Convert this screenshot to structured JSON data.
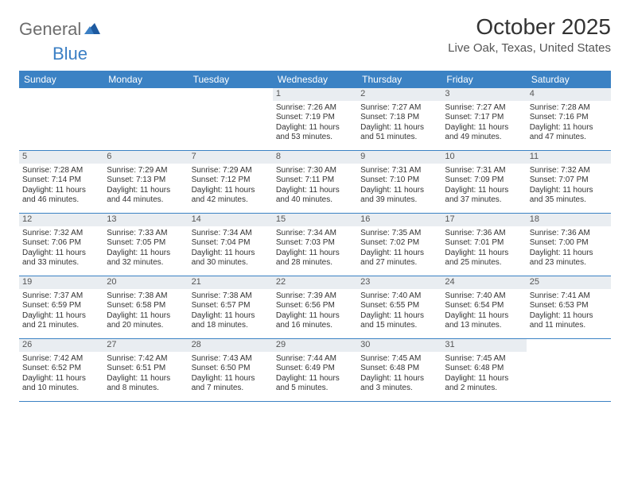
{
  "logo": {
    "text1": "General",
    "text2": "Blue"
  },
  "title": "October 2025",
  "location": "Live Oak, Texas, United States",
  "colors": {
    "header_bg": "#3b82c4",
    "daynum_bg": "#e9edf1",
    "border": "#3b82c4",
    "text": "#333333",
    "logo_gray": "#6d6d6d",
    "logo_blue": "#3b7fc4"
  },
  "day_labels": [
    "Sunday",
    "Monday",
    "Tuesday",
    "Wednesday",
    "Thursday",
    "Friday",
    "Saturday"
  ],
  "weeks": [
    [
      null,
      null,
      null,
      {
        "n": "1",
        "sr": "7:26 AM",
        "ss": "7:19 PM",
        "dl": "11 hours and 53 minutes."
      },
      {
        "n": "2",
        "sr": "7:27 AM",
        "ss": "7:18 PM",
        "dl": "11 hours and 51 minutes."
      },
      {
        "n": "3",
        "sr": "7:27 AM",
        "ss": "7:17 PM",
        "dl": "11 hours and 49 minutes."
      },
      {
        "n": "4",
        "sr": "7:28 AM",
        "ss": "7:16 PM",
        "dl": "11 hours and 47 minutes."
      }
    ],
    [
      {
        "n": "5",
        "sr": "7:28 AM",
        "ss": "7:14 PM",
        "dl": "11 hours and 46 minutes."
      },
      {
        "n": "6",
        "sr": "7:29 AM",
        "ss": "7:13 PM",
        "dl": "11 hours and 44 minutes."
      },
      {
        "n": "7",
        "sr": "7:29 AM",
        "ss": "7:12 PM",
        "dl": "11 hours and 42 minutes."
      },
      {
        "n": "8",
        "sr": "7:30 AM",
        "ss": "7:11 PM",
        "dl": "11 hours and 40 minutes."
      },
      {
        "n": "9",
        "sr": "7:31 AM",
        "ss": "7:10 PM",
        "dl": "11 hours and 39 minutes."
      },
      {
        "n": "10",
        "sr": "7:31 AM",
        "ss": "7:09 PM",
        "dl": "11 hours and 37 minutes."
      },
      {
        "n": "11",
        "sr": "7:32 AM",
        "ss": "7:07 PM",
        "dl": "11 hours and 35 minutes."
      }
    ],
    [
      {
        "n": "12",
        "sr": "7:32 AM",
        "ss": "7:06 PM",
        "dl": "11 hours and 33 minutes."
      },
      {
        "n": "13",
        "sr": "7:33 AM",
        "ss": "7:05 PM",
        "dl": "11 hours and 32 minutes."
      },
      {
        "n": "14",
        "sr": "7:34 AM",
        "ss": "7:04 PM",
        "dl": "11 hours and 30 minutes."
      },
      {
        "n": "15",
        "sr": "7:34 AM",
        "ss": "7:03 PM",
        "dl": "11 hours and 28 minutes."
      },
      {
        "n": "16",
        "sr": "7:35 AM",
        "ss": "7:02 PM",
        "dl": "11 hours and 27 minutes."
      },
      {
        "n": "17",
        "sr": "7:36 AM",
        "ss": "7:01 PM",
        "dl": "11 hours and 25 minutes."
      },
      {
        "n": "18",
        "sr": "7:36 AM",
        "ss": "7:00 PM",
        "dl": "11 hours and 23 minutes."
      }
    ],
    [
      {
        "n": "19",
        "sr": "7:37 AM",
        "ss": "6:59 PM",
        "dl": "11 hours and 21 minutes."
      },
      {
        "n": "20",
        "sr": "7:38 AM",
        "ss": "6:58 PM",
        "dl": "11 hours and 20 minutes."
      },
      {
        "n": "21",
        "sr": "7:38 AM",
        "ss": "6:57 PM",
        "dl": "11 hours and 18 minutes."
      },
      {
        "n": "22",
        "sr": "7:39 AM",
        "ss": "6:56 PM",
        "dl": "11 hours and 16 minutes."
      },
      {
        "n": "23",
        "sr": "7:40 AM",
        "ss": "6:55 PM",
        "dl": "11 hours and 15 minutes."
      },
      {
        "n": "24",
        "sr": "7:40 AM",
        "ss": "6:54 PM",
        "dl": "11 hours and 13 minutes."
      },
      {
        "n": "25",
        "sr": "7:41 AM",
        "ss": "6:53 PM",
        "dl": "11 hours and 11 minutes."
      }
    ],
    [
      {
        "n": "26",
        "sr": "7:42 AM",
        "ss": "6:52 PM",
        "dl": "11 hours and 10 minutes."
      },
      {
        "n": "27",
        "sr": "7:42 AM",
        "ss": "6:51 PM",
        "dl": "11 hours and 8 minutes."
      },
      {
        "n": "28",
        "sr": "7:43 AM",
        "ss": "6:50 PM",
        "dl": "11 hours and 7 minutes."
      },
      {
        "n": "29",
        "sr": "7:44 AM",
        "ss": "6:49 PM",
        "dl": "11 hours and 5 minutes."
      },
      {
        "n": "30",
        "sr": "7:45 AM",
        "ss": "6:48 PM",
        "dl": "11 hours and 3 minutes."
      },
      {
        "n": "31",
        "sr": "7:45 AM",
        "ss": "6:48 PM",
        "dl": "11 hours and 2 minutes."
      },
      null
    ]
  ],
  "labels": {
    "sunrise": "Sunrise:",
    "sunset": "Sunset:",
    "daylight": "Daylight:"
  }
}
